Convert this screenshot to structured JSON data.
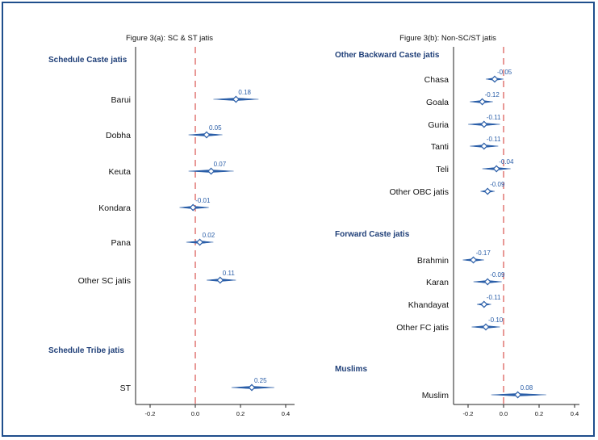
{
  "chart_data": [
    {
      "type": "scatter",
      "subtype": "coefficient-plot",
      "title": "Figure 3(a): SC & ST jatis",
      "xlim": [
        -0.3,
        0.45
      ],
      "xticks": [
        "-0.2",
        "0.0",
        "0.2",
        "0.4"
      ],
      "reference_line": 0,
      "groups": [
        {
          "label": "Schedule Caste jatis",
          "items": [
            {
              "label": "Barui",
              "value": 0.18,
              "value_label": "0.18",
              "ci": [
                0.08,
                0.28
              ]
            },
            {
              "label": "Dobha",
              "value": 0.05,
              "value_label": "0.05",
              "ci": [
                -0.03,
                0.12
              ]
            },
            {
              "label": "Keuta",
              "value": 0.07,
              "value_label": "0.07",
              "ci": [
                -0.03,
                0.17
              ]
            },
            {
              "label": "Kondara",
              "value": -0.01,
              "value_label": "-0.01",
              "ci": [
                -0.07,
                0.06
              ]
            },
            {
              "label": "Pana",
              "value": 0.02,
              "value_label": "0.02",
              "ci": [
                -0.04,
                0.08
              ]
            },
            {
              "label": "Other SC jatis",
              "value": 0.11,
              "value_label": "0.11",
              "ci": [
                0.05,
                0.18
              ]
            }
          ]
        },
        {
          "label": "Schedule Tribe jatis",
          "items": [
            {
              "label": "ST",
              "value": 0.25,
              "value_label": "0.25",
              "ci": [
                0.16,
                0.35
              ]
            }
          ]
        }
      ]
    },
    {
      "type": "scatter",
      "subtype": "coefficient-plot",
      "title": "Figure 3(b): Non-SC/ST jatis",
      "xlim": [
        -0.25,
        0.45
      ],
      "xticks": [
        "-0.2",
        "0.0",
        "0.2",
        "0.4"
      ],
      "reference_line": 0,
      "groups": [
        {
          "label": "Other Backward Caste jatis",
          "items": [
            {
              "label": "Chasa",
              "value": -0.05,
              "value_label": "-0.05",
              "ci": [
                -0.1,
                0.0
              ]
            },
            {
              "label": "Goala",
              "value": -0.12,
              "value_label": "-0.12",
              "ci": [
                -0.19,
                -0.06
              ]
            },
            {
              "label": "Guria",
              "value": -0.11,
              "value_label": "-0.11",
              "ci": [
                -0.2,
                -0.02
              ]
            },
            {
              "label": "Tanti",
              "value": -0.11,
              "value_label": "-0.11",
              "ci": [
                -0.19,
                -0.03
              ]
            },
            {
              "label": "Teli",
              "value": -0.04,
              "value_label": "-0.04",
              "ci": [
                -0.12,
                0.04
              ]
            },
            {
              "label": "Other OBC jatis",
              "value": -0.09,
              "value_label": "-0.09",
              "ci": [
                -0.13,
                -0.05
              ]
            }
          ]
        },
        {
          "label": "Forward Caste jatis",
          "items": [
            {
              "label": "Brahmin",
              "value": -0.17,
              "value_label": "-0.17",
              "ci": [
                -0.23,
                -0.11
              ]
            },
            {
              "label": "Karan",
              "value": -0.09,
              "value_label": "-0.09",
              "ci": [
                -0.17,
                -0.01
              ]
            },
            {
              "label": "Khandayat",
              "value": -0.11,
              "value_label": "-0.11",
              "ci": [
                -0.15,
                -0.07
              ]
            },
            {
              "label": "Other FC jatis",
              "value": -0.1,
              "value_label": "-0.10",
              "ci": [
                -0.18,
                -0.02
              ]
            }
          ]
        },
        {
          "label": "Muslims",
          "items": [
            {
              "label": "Muslim",
              "value": 0.08,
              "value_label": "0.08",
              "ci": [
                -0.07,
                0.24
              ]
            }
          ]
        }
      ]
    }
  ]
}
